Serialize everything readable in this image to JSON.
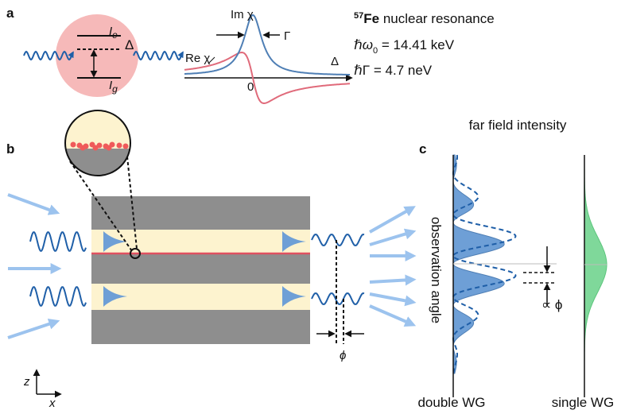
{
  "panel_labels": [
    "a",
    "b",
    "c"
  ],
  "panel_a": {
    "excited_level": {
      "symbol": "I",
      "subscript": "e"
    },
    "ground_level": {
      "symbol": "I",
      "subscript": "g"
    },
    "detuning_symbol": "Δ",
    "imag_label": "Im χ",
    "real_label": "Re χ",
    "width_label": "Γ",
    "axis_label": "Δ",
    "axis_origin": "0",
    "isotope_mass": "57",
    "isotope": "Fe",
    "resonance_text": " nuclear resonance",
    "energy": {
      "prefix": "ℏω",
      "subscript": "0",
      "rest": " = 14.41 keV"
    },
    "linewidth": "ℏΓ = 4.7 neV"
  },
  "panel_b": {
    "phase_label": "ϕ",
    "axis_z": "z",
    "axis_x": "x"
  },
  "panel_c": {
    "title": "far field intensity",
    "y_axis_label": "observation angle",
    "shift_label": "∝ ϕ",
    "left_label": "double WG",
    "right_label": "single WG"
  }
}
